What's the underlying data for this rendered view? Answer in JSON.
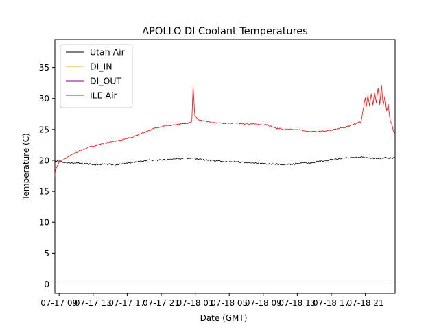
{
  "chart_data": {
    "type": "line",
    "title": "APOLLO DI Coolant Temperatures",
    "xlabel": "Date (GMT)",
    "ylabel": "Temperature (C)",
    "x_unit": "hours since 07-17 08:30 GMT",
    "xlim": [
      0,
      40
    ],
    "ylim": [
      -1.5,
      39.5
    ],
    "yticks": [
      0,
      5,
      10,
      15,
      20,
      25,
      30,
      35
    ],
    "xticks": [
      {
        "x": 0.5,
        "label": "07-17 09"
      },
      {
        "x": 4.5,
        "label": "07-17 13"
      },
      {
        "x": 8.5,
        "label": "07-17 17"
      },
      {
        "x": 12.5,
        "label": "07-17 21"
      },
      {
        "x": 16.5,
        "label": "07-18 01"
      },
      {
        "x": 20.5,
        "label": "07-18 05"
      },
      {
        "x": 24.5,
        "label": "07-18 09"
      },
      {
        "x": 28.5,
        "label": "07-18 13"
      },
      {
        "x": 32.5,
        "label": "07-18 17"
      },
      {
        "x": 36.5,
        "label": "07-18 21"
      }
    ],
    "legend_position": "top-left",
    "series": [
      {
        "name": "Utah Air",
        "color": "#000000",
        "x": [
          0,
          0.3,
          1,
          2,
          3,
          4,
          5,
          6,
          7,
          8,
          9,
          10,
          11,
          12,
          13,
          14,
          15,
          16,
          17,
          18,
          19,
          20,
          21,
          22,
          23,
          24,
          25,
          26,
          27,
          28,
          29,
          30,
          31,
          32,
          33,
          34,
          35,
          36,
          37,
          38,
          39,
          40
        ],
        "y": [
          19.8,
          19.9,
          19.7,
          19.6,
          19.5,
          19.4,
          19.3,
          19.4,
          19.3,
          19.4,
          19.6,
          19.8,
          20.0,
          20.0,
          20.1,
          20.2,
          20.3,
          20.3,
          20.2,
          20.0,
          19.9,
          19.8,
          19.8,
          19.7,
          19.6,
          19.5,
          19.4,
          19.4,
          19.3,
          19.4,
          19.5,
          19.6,
          19.8,
          20.0,
          20.2,
          20.4,
          20.4,
          20.5,
          20.4,
          20.3,
          20.4,
          20.4
        ]
      },
      {
        "name": "DI_IN",
        "color": "#ffa500",
        "x": [
          0,
          40
        ],
        "y": [
          0,
          0
        ]
      },
      {
        "name": "DI_OUT",
        "color": "#800080",
        "x": [
          0,
          40
        ],
        "y": [
          0,
          0
        ]
      },
      {
        "name": "ILE Air",
        "color": "#ff0000",
        "x": [
          0,
          0.05,
          0.3,
          0.6,
          1,
          1.5,
          2,
          3,
          4,
          5,
          6,
          7,
          8,
          9,
          10,
          11,
          12,
          13,
          14,
          15,
          15.9,
          16.1,
          16.25,
          16.45,
          16.7,
          17,
          18,
          19,
          20,
          21,
          22,
          23,
          24,
          25,
          26,
          27,
          28,
          29,
          30,
          31,
          32,
          33,
          34,
          35,
          36,
          36.5,
          36.6,
          36.8,
          37.0,
          37.2,
          37.4,
          37.6,
          37.8,
          38.0,
          38.2,
          38.4,
          38.6,
          38.8,
          39.0,
          39.2,
          39.4,
          39.6,
          39.8,
          40
        ],
        "y": [
          17.5,
          18.3,
          19.2,
          19.8,
          20.1,
          20.5,
          20.9,
          21.6,
          22.1,
          22.5,
          22.8,
          23.1,
          23.4,
          23.7,
          24.2,
          24.8,
          25.3,
          25.6,
          25.7,
          25.9,
          26.1,
          26.3,
          32.0,
          27.2,
          26.8,
          26.5,
          26.2,
          26.0,
          26.0,
          26.0,
          25.9,
          25.9,
          25.8,
          25.7,
          25.2,
          25.0,
          25.0,
          24.9,
          24.7,
          24.6,
          24.8,
          25.0,
          25.3,
          25.7,
          26.3,
          30.2,
          28.6,
          30.5,
          28.8,
          30.8,
          29.0,
          31.0,
          29.3,
          31.8,
          29.0,
          32.2,
          28.8,
          30.4,
          28.0,
          29.0,
          26.5,
          25.8,
          24.8,
          24.3
        ]
      }
    ]
  }
}
